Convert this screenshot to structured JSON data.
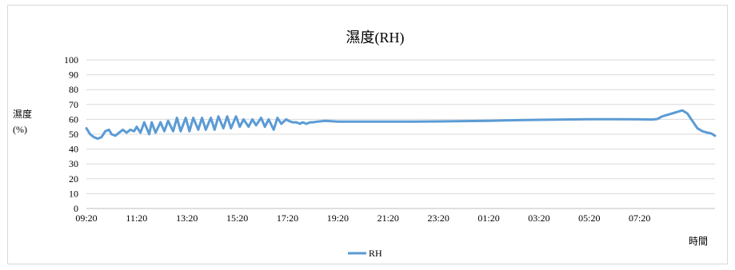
{
  "chart_data": {
    "type": "line",
    "title": "濕度(RH)",
    "ylabel": "濕度\n(%)",
    "xlabel": "時間",
    "ylim": [
      0,
      100
    ],
    "yticks": [
      "0",
      "10",
      "20",
      "30",
      "40",
      "50",
      "60",
      "70",
      "80",
      "90",
      "100"
    ],
    "xticks": [
      "09:20",
      "11:20",
      "13:20",
      "15:20",
      "17:20",
      "19:20",
      "21:20",
      "23:20",
      "01:20",
      "03:20",
      "05:20",
      "07:20"
    ],
    "x_range_hours": [
      0,
      25
    ],
    "grid": true,
    "legend": "bottom-center",
    "series": [
      {
        "name": "RH",
        "color": "#5b9bd5",
        "x": [
          0,
          0.15,
          0.3,
          0.45,
          0.6,
          0.75,
          0.9,
          1.0,
          1.15,
          1.3,
          1.45,
          1.6,
          1.75,
          1.9,
          2.0,
          2.15,
          2.3,
          2.45,
          2.5,
          2.6,
          2.75,
          2.95,
          3.1,
          3.25,
          3.45,
          3.6,
          3.75,
          3.95,
          4.1,
          4.25,
          4.45,
          4.6,
          4.75,
          4.95,
          5.1,
          5.25,
          5.45,
          5.6,
          5.75,
          5.95,
          6.1,
          6.25,
          6.45,
          6.6,
          6.75,
          6.95,
          7.1,
          7.25,
          7.45,
          7.6,
          7.75,
          7.95,
          8.05,
          8.2,
          8.35,
          8.5,
          8.6,
          8.75,
          8.9,
          9.0,
          9.2,
          9.5,
          10,
          11,
          12,
          13,
          14,
          15,
          16,
          17,
          18,
          19,
          20,
          21,
          22,
          22.5,
          22.7,
          22.9,
          23.1,
          23.3,
          23.5,
          23.7,
          23.9,
          24.1,
          24.3,
          24.5,
          24.7,
          24.85,
          25
        ],
        "values": [
          54,
          50,
          48,
          47,
          48,
          52,
          53,
          50,
          49,
          51,
          53,
          51,
          53,
          52,
          55,
          51,
          58,
          52,
          50,
          58,
          51,
          58,
          52,
          59,
          52,
          61,
          52,
          61,
          52,
          61,
          53,
          61,
          53,
          61,
          53,
          62,
          54,
          62,
          54,
          62,
          55,
          60,
          55,
          60,
          56,
          61,
          55,
          60,
          53,
          61,
          57,
          60,
          59,
          58,
          58,
          57,
          58,
          57,
          58,
          58,
          58.5,
          59,
          58.5,
          58.5,
          58.5,
          58.5,
          58.6,
          58.8,
          59,
          59.4,
          59.7,
          59.9,
          60.1,
          60.1,
          60.0,
          59.9,
          60.2,
          62,
          63,
          64,
          65,
          66,
          64,
          59,
          54,
          52,
          51,
          50.5,
          49
        ]
      }
    ]
  }
}
